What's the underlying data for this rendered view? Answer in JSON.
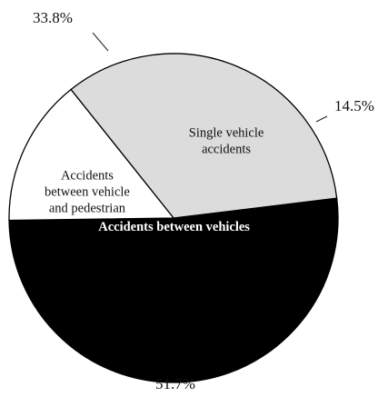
{
  "chart_data": {
    "type": "pie",
    "slices": [
      {
        "label": "Accidents between vehicles",
        "label_lines": [
          "Accidents between vehicles"
        ],
        "value": 51.7,
        "value_label": "51.7%",
        "color": "#000000",
        "text_color": "#ffffff"
      },
      {
        "label": "Single vehicle accidents",
        "label_lines": [
          "Single vehicle",
          "accidents"
        ],
        "value": 33.8,
        "value_label": "33.8%",
        "color": "#dcdcdc",
        "text_color": "#111111"
      },
      {
        "label": "Accidents between vehicle and pedestrian",
        "label_lines": [
          "Accidents",
          "between vehicle",
          "and pedestrian"
        ],
        "value": 14.5,
        "value_label": "14.5%",
        "color": "#ffffff",
        "text_color": "#111111"
      }
    ]
  }
}
